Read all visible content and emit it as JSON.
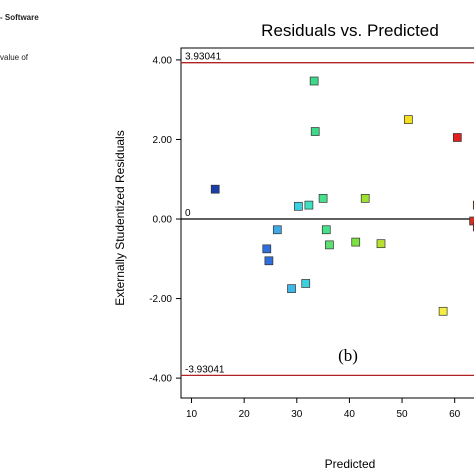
{
  "side_text": {
    "software": "- Software",
    "value_of": "value of"
  },
  "chart_data": {
    "type": "scatter",
    "title": "Residuals vs. Predicted",
    "xlabel": "Predicted",
    "ylabel": "Externally Studentized Residuals",
    "xlim": [
      8,
      65
    ],
    "ylim": [
      -4.5,
      4.3
    ],
    "xticks": [
      10,
      20,
      30,
      40,
      50,
      60
    ],
    "xtick_labels": [
      "10",
      "20",
      "30",
      "40",
      "50",
      "60"
    ],
    "yticks": [
      4.0,
      2.0,
      0.0,
      -2.0,
      -4.0
    ],
    "ytick_labels": [
      "4.00",
      "2.00",
      "0.00",
      "-2.00",
      "-4.00"
    ],
    "reference_lines": [
      {
        "value": 3.93041,
        "label": "3.93041",
        "color": "#b22222"
      },
      {
        "value": 0,
        "label": "0",
        "color": "#000000"
      },
      {
        "value": -3.93041,
        "label": "-3.93041",
        "color": "#b22222"
      }
    ],
    "annotation": "(b)",
    "grid": false,
    "points": [
      {
        "x": 14.5,
        "y": 0.75,
        "color": "#1a3fa8"
      },
      {
        "x": 24.3,
        "y": -0.75,
        "color": "#2e6fdc"
      },
      {
        "x": 24.7,
        "y": -1.05,
        "color": "#2e6fdc"
      },
      {
        "x": 26.3,
        "y": -0.27,
        "color": "#3fa8e6"
      },
      {
        "x": 29.0,
        "y": -1.75,
        "color": "#3fb8e8"
      },
      {
        "x": 30.3,
        "y": 0.32,
        "color": "#3fd0e0"
      },
      {
        "x": 31.7,
        "y": -1.62,
        "color": "#3fd0e0"
      },
      {
        "x": 32.3,
        "y": 0.35,
        "color": "#3fe0c0"
      },
      {
        "x": 33.3,
        "y": 3.47,
        "color": "#3fd888"
      },
      {
        "x": 33.5,
        "y": 2.2,
        "color": "#3fd888"
      },
      {
        "x": 35.0,
        "y": 0.52,
        "color": "#46e08a"
      },
      {
        "x": 35.6,
        "y": -0.27,
        "color": "#46e08a"
      },
      {
        "x": 36.2,
        "y": -0.65,
        "color": "#5ce070"
      },
      {
        "x": 41.2,
        "y": -0.58,
        "color": "#7ce040"
      },
      {
        "x": 43.0,
        "y": 0.52,
        "color": "#9ce030"
      },
      {
        "x": 46.0,
        "y": -0.62,
        "color": "#b8e030"
      },
      {
        "x": 51.2,
        "y": 2.5,
        "color": "#f5e020"
      },
      {
        "x": 57.8,
        "y": -2.32,
        "color": "#f5ee40"
      },
      {
        "x": 60.5,
        "y": 2.05,
        "color": "#e02020"
      },
      {
        "x": 63.6,
        "y": -0.05,
        "color": "#d03020"
      },
      {
        "x": 64.3,
        "y": 0.35,
        "color": "#c82020"
      },
      {
        "x": 64.3,
        "y": -0.2,
        "color": "#c82020"
      }
    ]
  }
}
